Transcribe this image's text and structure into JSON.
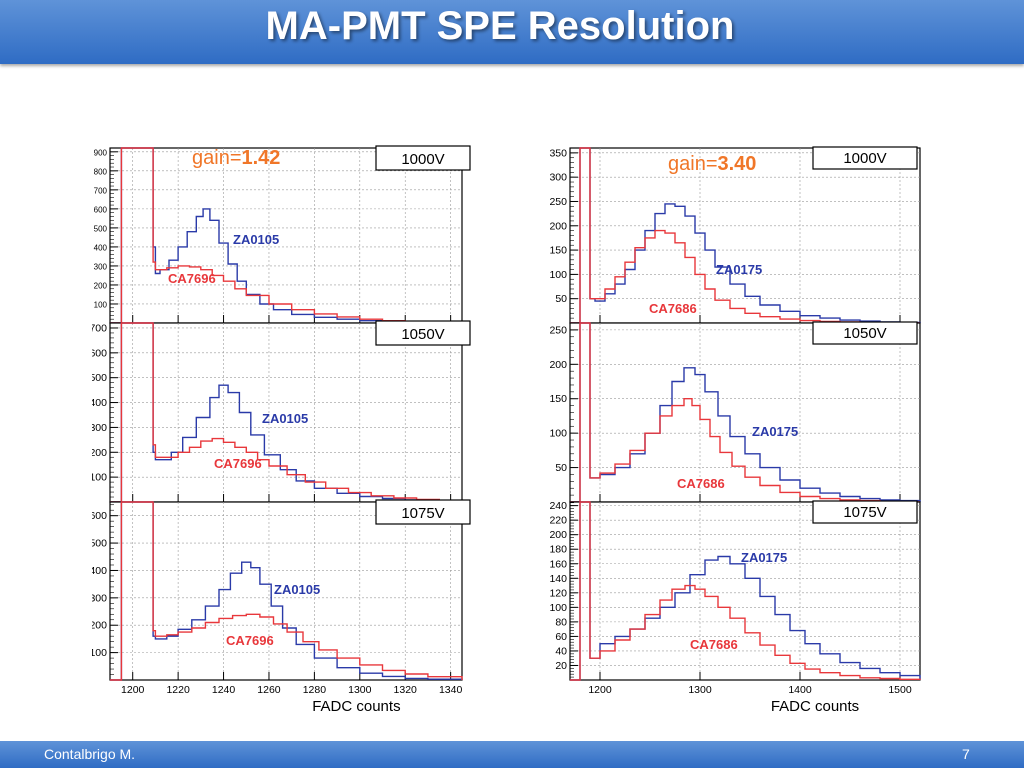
{
  "slide": {
    "title": "MA-PMT SPE Resolution",
    "author": "Contalbrigo M.",
    "page_number": "7"
  },
  "colors": {
    "blue_series": "#2a3aa8",
    "red_series": "#e8373b",
    "gain_label": "#f07628",
    "title_bar": "#3d77cc"
  },
  "chart_data": [
    {
      "type": "line",
      "subtype": "histogram",
      "gain_prefix": "gain=",
      "gain_value": "1.42",
      "xlabel": "FADC counts",
      "xlim": [
        1190,
        1345
      ],
      "xticks": [
        1200,
        1220,
        1240,
        1260,
        1280,
        1300,
        1320,
        1340
      ],
      "panels": [
        {
          "voltage": "1000V",
          "ylim": [
            0,
            920
          ],
          "yticks": [
            100,
            200,
            300,
            400,
            500,
            600,
            700,
            800,
            900
          ],
          "series": [
            {
              "name": "ZA0105",
              "color": "blue",
              "x": [
                1190,
                1194,
                1195,
                1198,
                1201,
                1204,
                1206,
                1207,
                1208,
                1209,
                1210,
                1212,
                1216,
                1220,
                1224,
                1228,
                1231,
                1234,
                1238,
                1242,
                1246,
                1250,
                1256,
                1262,
                1270,
                1280,
                1290,
                1300,
                1310,
                1320,
                1330,
                1345
              ],
              "y": [
                0,
                0,
                920,
                920,
                920,
                920,
                920,
                920,
                920,
                400,
                260,
                280,
                330,
                400,
                480,
                560,
                600,
                540,
                420,
                310,
                220,
                150,
                100,
                70,
                45,
                30,
                20,
                12,
                6,
                3,
                1,
                0
              ]
            },
            {
              "name": "CA7696",
              "color": "red",
              "x": [
                1190,
                1194,
                1195,
                1198,
                1201,
                1204,
                1206,
                1207,
                1208,
                1209,
                1210,
                1215,
                1220,
                1225,
                1230,
                1235,
                1240,
                1245,
                1250,
                1260,
                1270,
                1280,
                1290,
                1300,
                1310,
                1320,
                1330,
                1345
              ],
              "y": [
                0,
                0,
                920,
                920,
                920,
                920,
                920,
                920,
                920,
                320,
                280,
                290,
                300,
                295,
                280,
                250,
                220,
                180,
                145,
                100,
                70,
                48,
                32,
                20,
                12,
                6,
                3,
                0
              ]
            }
          ]
        },
        {
          "voltage": "1050V",
          "ylim": [
            0,
            720
          ],
          "yticks": [
            100,
            200,
            300,
            400,
            500,
            600,
            700
          ],
          "series": [
            {
              "name": "ZA0105",
              "color": "blue",
              "x": [
                1190,
                1194,
                1195,
                1198,
                1201,
                1204,
                1206,
                1207,
                1208,
                1209,
                1210,
                1213,
                1217,
                1222,
                1228,
                1234,
                1238,
                1242,
                1247,
                1252,
                1258,
                1265,
                1272,
                1280,
                1290,
                1300,
                1310,
                1320,
                1330,
                1345
              ],
              "y": [
                0,
                0,
                720,
                720,
                720,
                720,
                720,
                720,
                720,
                200,
                170,
                170,
                200,
                260,
                340,
                420,
                470,
                440,
                360,
                270,
                190,
                130,
                85,
                55,
                35,
                22,
                14,
                8,
                4,
                0
              ]
            },
            {
              "name": "CA7696",
              "color": "red",
              "x": [
                1190,
                1194,
                1195,
                1198,
                1201,
                1204,
                1206,
                1207,
                1208,
                1209,
                1210,
                1215,
                1220,
                1225,
                1230,
                1235,
                1240,
                1245,
                1250,
                1255,
                1260,
                1268,
                1276,
                1285,
                1295,
                1305,
                1315,
                1325,
                1335,
                1345
              ],
              "y": [
                0,
                0,
                720,
                720,
                720,
                720,
                720,
                720,
                720,
                230,
                180,
                180,
                200,
                220,
                245,
                255,
                240,
                220,
                200,
                170,
                145,
                110,
                80,
                55,
                38,
                25,
                16,
                10,
                5,
                0
              ]
            }
          ]
        },
        {
          "voltage": "1075V",
          "ylim": [
            0,
            650
          ],
          "yticks": [
            100,
            200,
            300,
            400,
            500,
            600
          ],
          "series": [
            {
              "name": "ZA0105",
              "color": "blue",
              "x": [
                1190,
                1194,
                1195,
                1198,
                1201,
                1204,
                1206,
                1207,
                1208,
                1209,
                1210,
                1215,
                1220,
                1226,
                1232,
                1238,
                1243,
                1248,
                1252,
                1256,
                1261,
                1266,
                1272,
                1280,
                1290,
                1300,
                1310,
                1320,
                1330,
                1345
              ],
              "y": [
                0,
                0,
                650,
                650,
                650,
                650,
                650,
                650,
                650,
                160,
                150,
                160,
                185,
                220,
                270,
                330,
                390,
                430,
                410,
                350,
                270,
                190,
                130,
                80,
                45,
                25,
                13,
                6,
                3,
                0
              ]
            },
            {
              "name": "CA7696",
              "color": "red",
              "x": [
                1190,
                1194,
                1195,
                1198,
                1201,
                1204,
                1206,
                1207,
                1208,
                1209,
                1210,
                1215,
                1220,
                1226,
                1232,
                1238,
                1244,
                1250,
                1256,
                1262,
                1268,
                1275,
                1282,
                1290,
                1300,
                1310,
                1320,
                1330,
                1345
              ],
              "y": [
                0,
                0,
                650,
                650,
                650,
                650,
                650,
                650,
                650,
                180,
                160,
                165,
                175,
                190,
                210,
                225,
                235,
                240,
                230,
                205,
                175,
                140,
                110,
                80,
                55,
                35,
                22,
                12,
                0
              ]
            }
          ]
        }
      ]
    },
    {
      "type": "line",
      "subtype": "histogram",
      "gain_prefix": "gain=",
      "gain_value": "3.40",
      "xlabel": "FADC counts",
      "xlim": [
        1170,
        1520
      ],
      "xticks": [
        1200,
        1300,
        1400,
        1500
      ],
      "panels": [
        {
          "voltage": "1000V",
          "ylim": [
            0,
            360
          ],
          "yticks": [
            50,
            100,
            150,
            200,
            250,
            300,
            350
          ],
          "series": [
            {
              "name": "ZA0175",
              "color": "blue",
              "x": [
                1170,
                1178,
                1180,
                1183,
                1186,
                1188,
                1190,
                1195,
                1205,
                1215,
                1225,
                1235,
                1245,
                1255,
                1265,
                1275,
                1285,
                1295,
                1305,
                1315,
                1330,
                1345,
                1360,
                1380,
                1400,
                1420,
                1440,
                1460,
                1480,
                1500,
                1520
              ],
              "y": [
                0,
                0,
                360,
                360,
                360,
                360,
                50,
                45,
                60,
                80,
                110,
                150,
                190,
                225,
                245,
                240,
                220,
                185,
                150,
                115,
                80,
                55,
                37,
                24,
                15,
                10,
                6,
                4,
                2,
                1,
                0
              ]
            },
            {
              "name": "CA7686",
              "color": "red",
              "x": [
                1170,
                1178,
                1180,
                1183,
                1186,
                1188,
                1190,
                1195,
                1205,
                1215,
                1225,
                1235,
                1245,
                1255,
                1265,
                1275,
                1285,
                1295,
                1305,
                1315,
                1330,
                1345,
                1360,
                1380,
                1400,
                1420,
                1440,
                1460,
                1480,
                1500,
                1520
              ],
              "y": [
                0,
                0,
                360,
                360,
                360,
                360,
                50,
                50,
                70,
                95,
                125,
                155,
                175,
                190,
                185,
                165,
                135,
                100,
                70,
                47,
                30,
                20,
                13,
                8,
                5,
                3,
                2,
                1,
                1,
                0,
                0
              ]
            }
          ]
        },
        {
          "voltage": "1050V",
          "ylim": [
            0,
            260
          ],
          "yticks": [
            50,
            100,
            150,
            200,
            250
          ],
          "series": [
            {
              "name": "ZA0175",
              "color": "blue",
              "x": [
                1170,
                1178,
                1180,
                1183,
                1186,
                1188,
                1190,
                1200,
                1215,
                1230,
                1245,
                1260,
                1272,
                1284,
                1295,
                1305,
                1318,
                1330,
                1345,
                1360,
                1380,
                1400,
                1420,
                1440,
                1460,
                1480,
                1500,
                1520
              ],
              "y": [
                0,
                0,
                260,
                260,
                260,
                260,
                35,
                40,
                50,
                70,
                100,
                140,
                175,
                195,
                185,
                160,
                125,
                95,
                70,
                50,
                32,
                20,
                13,
                8,
                5,
                3,
                2,
                0
              ]
            },
            {
              "name": "CA7686",
              "color": "red",
              "x": [
                1170,
                1178,
                1180,
                1183,
                1186,
                1188,
                1190,
                1200,
                1215,
                1230,
                1245,
                1260,
                1272,
                1284,
                1292,
                1300,
                1310,
                1320,
                1332,
                1345,
                1360,
                1380,
                1400,
                1420,
                1440,
                1460,
                1480,
                1500,
                1520
              ],
              "y": [
                0,
                0,
                260,
                260,
                260,
                260,
                35,
                42,
                55,
                75,
                100,
                125,
                140,
                150,
                140,
                120,
                95,
                72,
                52,
                36,
                24,
                14,
                8,
                5,
                3,
                2,
                1,
                0,
                0
              ]
            }
          ]
        },
        {
          "voltage": "1075V",
          "ylim": [
            0,
            245
          ],
          "yticks": [
            20,
            40,
            60,
            80,
            100,
            120,
            140,
            160,
            180,
            200,
            220,
            240
          ],
          "series": [
            {
              "name": "ZA0175",
              "color": "blue",
              "x": [
                1170,
                1178,
                1180,
                1183,
                1186,
                1188,
                1190,
                1200,
                1215,
                1230,
                1245,
                1260,
                1275,
                1290,
                1305,
                1318,
                1330,
                1345,
                1360,
                1375,
                1390,
                1405,
                1420,
                1440,
                1460,
                1480,
                1500,
                1520
              ],
              "y": [
                0,
                0,
                245,
                245,
                245,
                245,
                30,
                50,
                60,
                70,
                85,
                100,
                120,
                145,
                165,
                170,
                160,
                140,
                115,
                90,
                68,
                50,
                36,
                24,
                16,
                10,
                6,
                0
              ]
            },
            {
              "name": "CA7686",
              "color": "red",
              "x": [
                1170,
                1178,
                1180,
                1183,
                1186,
                1188,
                1190,
                1200,
                1215,
                1230,
                1245,
                1260,
                1272,
                1285,
                1295,
                1305,
                1318,
                1330,
                1345,
                1360,
                1375,
                1390,
                1405,
                1420,
                1440,
                1460,
                1480,
                1500,
                1520
              ],
              "y": [
                0,
                0,
                245,
                245,
                245,
                245,
                30,
                40,
                55,
                70,
                90,
                110,
                125,
                130,
                125,
                115,
                100,
                85,
                65,
                48,
                34,
                23,
                15,
                10,
                6,
                3,
                2,
                1,
                0
              ]
            }
          ]
        }
      ]
    }
  ]
}
